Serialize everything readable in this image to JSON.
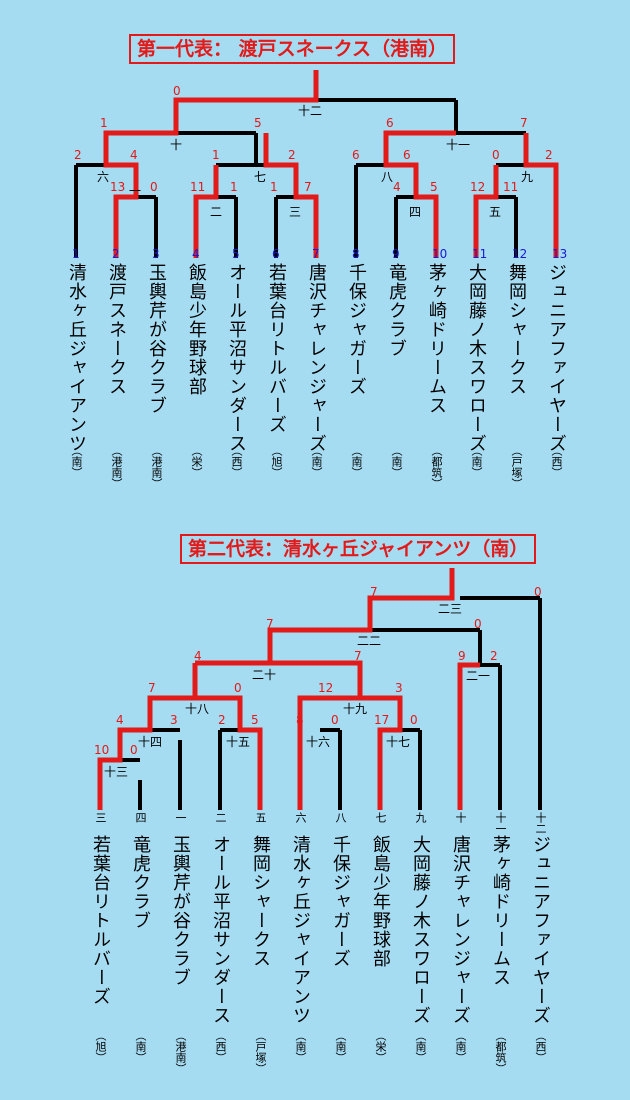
{
  "rep1_title": "第一代表： 渡戸スネークス（港南）",
  "rep2_title": "第二代表：清水ヶ丘ジャイアンツ（南）",
  "bracket1": {
    "teams": [
      {
        "no": "1",
        "name": "清水ヶ丘ジャイアンツ",
        "area": "（南）"
      },
      {
        "no": "2",
        "name": "渡戸スネークス",
        "area": "（港南）"
      },
      {
        "no": "3",
        "name": "玉輿芹が谷クラブ",
        "area": "（港南）"
      },
      {
        "no": "4",
        "name": "飯島少年野球部",
        "area": "（栄）"
      },
      {
        "no": "5",
        "name": "オール平沼サンダース",
        "area": "（西）"
      },
      {
        "no": "6",
        "name": "若葉台リトルバーズ",
        "area": "（旭）"
      },
      {
        "no": "7",
        "name": "唐沢チャレンジャーズ",
        "area": "（南）"
      },
      {
        "no": "8",
        "name": "千保ジャガーズ",
        "area": "（南）"
      },
      {
        "no": "9",
        "name": "竜虎クラブ",
        "area": "（南）"
      },
      {
        "no": "10",
        "name": "茅ヶ崎ドリームス",
        "area": "（都筑）"
      },
      {
        "no": "11",
        "name": "大岡藤ノ木スワローズ",
        "area": "（南）"
      },
      {
        "no": "12",
        "name": "舞岡シャークス",
        "area": "（戸塚）"
      },
      {
        "no": "13",
        "name": "ジュニアファイヤーズ",
        "area": "（西）"
      }
    ],
    "match_labels": [
      "一",
      "二",
      "三",
      "四",
      "五",
      "六",
      "七",
      "八",
      "九",
      "十",
      "十一",
      "十二"
    ],
    "scores": [
      "13",
      "0",
      "11",
      "1",
      "1",
      "7",
      "4",
      "5",
      "12",
      "11",
      "2",
      "4",
      "1",
      "2",
      "6",
      "6",
      "0",
      "2",
      "1",
      "5",
      "6",
      "7",
      "0"
    ]
  },
  "bracket2": {
    "teams": [
      {
        "no": "三",
        "name": "若葉台リトルバーズ",
        "area": "（旭）"
      },
      {
        "no": "四",
        "name": "竜虎クラブ",
        "area": "（南）"
      },
      {
        "no": "一",
        "name": "玉輿芹が谷クラブ",
        "area": "（港南）"
      },
      {
        "no": "二",
        "name": "オール平沼サンダース",
        "area": "（西）"
      },
      {
        "no": "五",
        "name": "舞岡シャークス",
        "area": "（戸塚）"
      },
      {
        "no": "六",
        "name": "清水ヶ丘ジャイアンツ",
        "area": "（南）"
      },
      {
        "no": "八",
        "name": "千保ジャガーズ",
        "area": "（南）"
      },
      {
        "no": "七",
        "name": "飯島少年野球部",
        "area": "（栄）"
      },
      {
        "no": "九",
        "name": "大岡藤ノ木スワローズ",
        "area": "（南）"
      },
      {
        "no": "十",
        "name": "唐沢チャレンジャーズ",
        "area": "（南）"
      },
      {
        "no": "十一",
        "name": "茅ヶ崎ドリームス",
        "area": "（都筑）"
      },
      {
        "no": "十二",
        "name": "ジュニアファイヤーズ",
        "area": "（西）"
      }
    ],
    "match_labels": [
      "十三",
      "十四",
      "十五",
      "十六",
      "十七",
      "十八",
      "十九",
      "二十",
      "二一",
      "二二",
      "二三"
    ],
    "scores": [
      "10",
      "0",
      "4",
      "3",
      "2",
      "5",
      "8",
      "0",
      "17",
      "0",
      "7",
      "0",
      "12",
      "3",
      "4",
      "7",
      "9",
      "2",
      "7",
      "0",
      "7",
      "0"
    ]
  }
}
